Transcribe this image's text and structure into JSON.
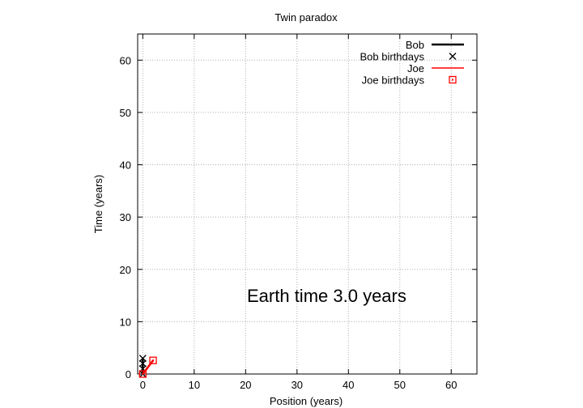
{
  "chart_data": {
    "type": "line",
    "title": "Twin paradox",
    "xlabel": "Position (years)",
    "ylabel": "Time (years)",
    "xlim": [
      -1,
      65
    ],
    "ylim": [
      0,
      65
    ],
    "xticks": [
      0,
      10,
      20,
      30,
      40,
      50,
      60
    ],
    "yticks": [
      0,
      10,
      20,
      30,
      40,
      50,
      60
    ],
    "grid": true,
    "legend_position": "top-right",
    "annotation": "Earth time  3.0 years",
    "series": [
      {
        "name": "Bob",
        "kind": "line",
        "color": "#000000",
        "points": [
          [
            0,
            0
          ],
          [
            0,
            3.0
          ]
        ]
      },
      {
        "name": "Bob birthdays",
        "kind": "marker-x",
        "color": "#000000",
        "points": [
          [
            0,
            0
          ],
          [
            0,
            1
          ],
          [
            0,
            2
          ],
          [
            0,
            3
          ]
        ]
      },
      {
        "name": "Joe",
        "kind": "line",
        "color": "#ff0000",
        "points": [
          [
            0,
            0
          ],
          [
            2.0,
            2.6
          ]
        ]
      },
      {
        "name": "Joe birthdays",
        "kind": "marker-square",
        "color": "#ff0000",
        "points": [
          [
            0,
            0
          ],
          [
            2.0,
            2.6
          ]
        ]
      }
    ]
  }
}
